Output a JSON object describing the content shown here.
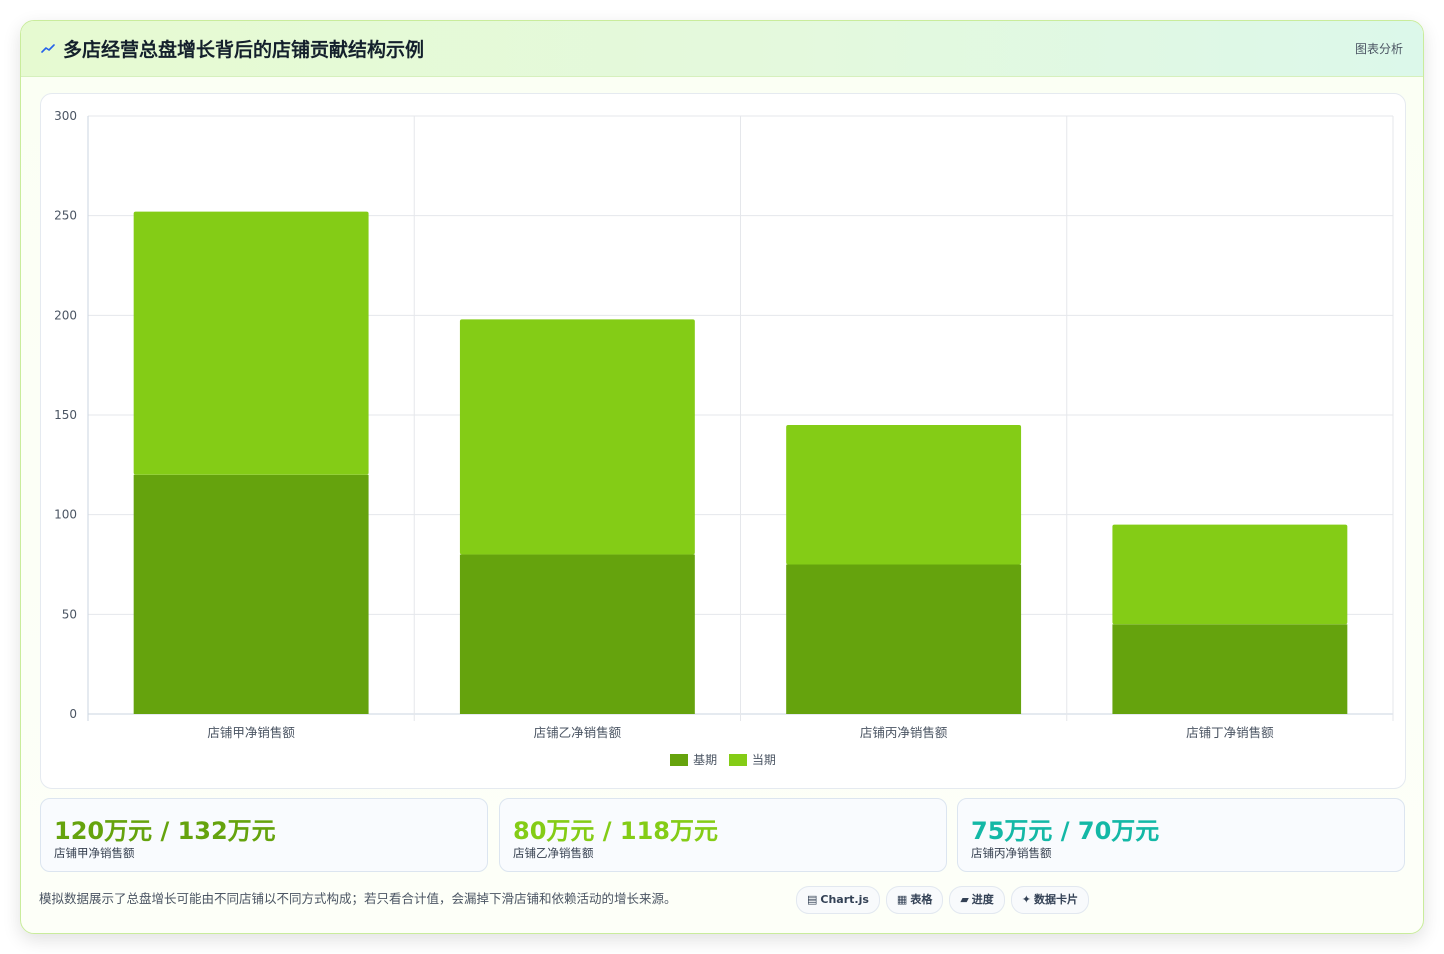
{
  "header": {
    "title": "多店经营总盘增长背后的店铺贡献结构示例",
    "right_label": "图表分析"
  },
  "chart_data": {
    "type": "bar",
    "stacked": true,
    "categories": [
      "店铺甲净销售额",
      "店铺乙净销售额",
      "店铺丙净销售额",
      "店铺丁净销售额"
    ],
    "series": [
      {
        "name": "基期",
        "values": [
          120,
          80,
          75,
          45
        ],
        "color": "#65a30d"
      },
      {
        "name": "当期",
        "values": [
          132,
          118,
          70,
          50
        ],
        "color": "#84cc16"
      }
    ],
    "ylim": [
      0,
      300
    ],
    "yticks": [
      0,
      50,
      100,
      150,
      200,
      250,
      300
    ],
    "grid": true,
    "legend_position": "bottom"
  },
  "stats": [
    {
      "value": "120万元 / 132万元",
      "label": "店铺甲净销售额",
      "color": "#65a30d"
    },
    {
      "value": "80万元 / 118万元",
      "label": "店铺乙净销售额",
      "color": "#84cc16"
    },
    {
      "value": "75万元 / 70万元",
      "label": "店铺丙净销售额",
      "color": "#14b8a6"
    }
  ],
  "footnote": "模拟数据展示了总盘增长可能由不同店铺以不同方式构成；若只看合计值，会漏掉下滑店铺和依赖活动的增长来源。",
  "tags": [
    {
      "icon": "▤",
      "icon_name": "chart-icon",
      "label": "Chart.js"
    },
    {
      "icon": "▦",
      "icon_name": "table-icon",
      "label": "表格"
    },
    {
      "icon": "▰",
      "icon_name": "progress-icon",
      "label": "进度"
    },
    {
      "icon": "✦",
      "icon_name": "card-icon",
      "label": "数据卡片"
    }
  ]
}
